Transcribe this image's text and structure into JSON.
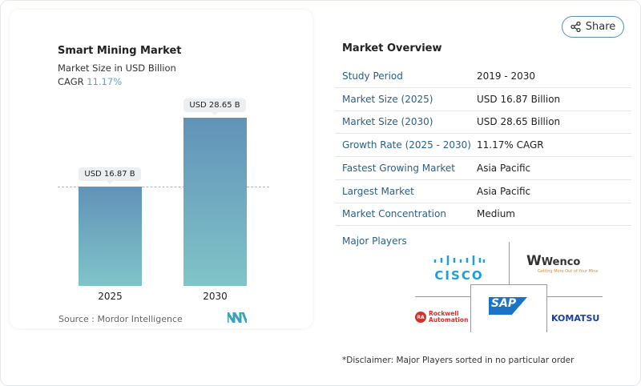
{
  "chart_data": {
    "type": "bar",
    "title": "Smart Mining Market",
    "subtitle": "Market Size in USD Billion",
    "cagr_label": "CAGR",
    "cagr_value": "11.17%",
    "categories": [
      "2025",
      "2030"
    ],
    "values": [
      16.87,
      28.65
    ],
    "data_labels": [
      "USD 16.87 B",
      "USD 28.65 B"
    ],
    "ylim": [
      0,
      33
    ],
    "bar_colors": [
      "#6192b8",
      "#80c4c8"
    ]
  },
  "source": "Source :  Mordor Intelligence",
  "share_label": "Share",
  "overview": {
    "title": "Market Overview",
    "rows": [
      {
        "k": "Study Period",
        "v": "2019 - 2030"
      },
      {
        "k": "Market Size (2025)",
        "v": "USD 16.87 Billion"
      },
      {
        "k": "Market Size (2030)",
        "v": "USD 28.65 Billion"
      },
      {
        "k": "Growth Rate (2025 - 2030)",
        "v": "11.17% CAGR"
      },
      {
        "k": "Fastest Growing Market",
        "v": "Asia Pacific"
      },
      {
        "k": "Largest Market",
        "v": "Asia Pacific"
      },
      {
        "k": "Market Concentration",
        "v": "Medium"
      }
    ]
  },
  "players": {
    "title": "Major Players",
    "logos": [
      "CISCO",
      "Wenco",
      "Getting More Out of Your Mine",
      "SAP",
      "Rockwell Automation",
      "KOMATSU"
    ]
  },
  "disclaimer": "*Disclaimer: Major Players sorted in no particular order"
}
